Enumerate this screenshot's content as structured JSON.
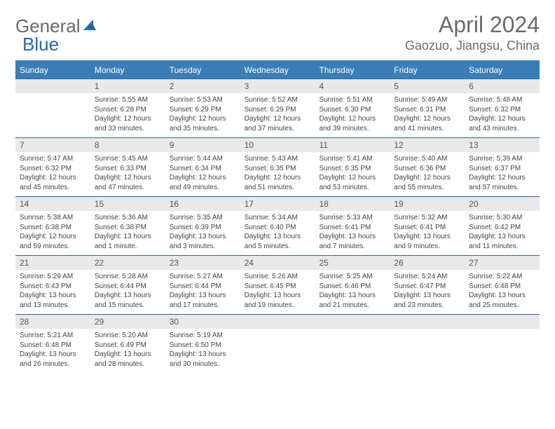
{
  "logo": {
    "text1": "General",
    "text2": "Blue"
  },
  "title": "April 2024",
  "location": "Gaozuo, Jiangsu, China",
  "colors": {
    "header_bg": "#3b7db9",
    "header_text": "#ffffff",
    "divider": "#2169b0",
    "daynum_bg": "#e9e9e9",
    "text": "#444444",
    "title_text": "#6b6b6b"
  },
  "day_labels": [
    "Sunday",
    "Monday",
    "Tuesday",
    "Wednesday",
    "Thursday",
    "Friday",
    "Saturday"
  ],
  "weeks": [
    [
      {
        "n": "",
        "sunrise": "",
        "sunset": "",
        "daylight": ""
      },
      {
        "n": "1",
        "sunrise": "Sunrise: 5:55 AM",
        "sunset": "Sunset: 6:28 PM",
        "daylight": "Daylight: 12 hours and 33 minutes."
      },
      {
        "n": "2",
        "sunrise": "Sunrise: 5:53 AM",
        "sunset": "Sunset: 6:29 PM",
        "daylight": "Daylight: 12 hours and 35 minutes."
      },
      {
        "n": "3",
        "sunrise": "Sunrise: 5:52 AM",
        "sunset": "Sunset: 6:29 PM",
        "daylight": "Daylight: 12 hours and 37 minutes."
      },
      {
        "n": "4",
        "sunrise": "Sunrise: 5:51 AM",
        "sunset": "Sunset: 6:30 PM",
        "daylight": "Daylight: 12 hours and 39 minutes."
      },
      {
        "n": "5",
        "sunrise": "Sunrise: 5:49 AM",
        "sunset": "Sunset: 6:31 PM",
        "daylight": "Daylight: 12 hours and 41 minutes."
      },
      {
        "n": "6",
        "sunrise": "Sunrise: 5:48 AM",
        "sunset": "Sunset: 6:32 PM",
        "daylight": "Daylight: 12 hours and 43 minutes."
      }
    ],
    [
      {
        "n": "7",
        "sunrise": "Sunrise: 5:47 AM",
        "sunset": "Sunset: 6:32 PM",
        "daylight": "Daylight: 12 hours and 45 minutes."
      },
      {
        "n": "8",
        "sunrise": "Sunrise: 5:45 AM",
        "sunset": "Sunset: 6:33 PM",
        "daylight": "Daylight: 12 hours and 47 minutes."
      },
      {
        "n": "9",
        "sunrise": "Sunrise: 5:44 AM",
        "sunset": "Sunset: 6:34 PM",
        "daylight": "Daylight: 12 hours and 49 minutes."
      },
      {
        "n": "10",
        "sunrise": "Sunrise: 5:43 AM",
        "sunset": "Sunset: 6:35 PM",
        "daylight": "Daylight: 12 hours and 51 minutes."
      },
      {
        "n": "11",
        "sunrise": "Sunrise: 5:41 AM",
        "sunset": "Sunset: 6:35 PM",
        "daylight": "Daylight: 12 hours and 53 minutes."
      },
      {
        "n": "12",
        "sunrise": "Sunrise: 5:40 AM",
        "sunset": "Sunset: 6:36 PM",
        "daylight": "Daylight: 12 hours and 55 minutes."
      },
      {
        "n": "13",
        "sunrise": "Sunrise: 5:39 AM",
        "sunset": "Sunset: 6:37 PM",
        "daylight": "Daylight: 12 hours and 57 minutes."
      }
    ],
    [
      {
        "n": "14",
        "sunrise": "Sunrise: 5:38 AM",
        "sunset": "Sunset: 6:38 PM",
        "daylight": "Daylight: 12 hours and 59 minutes."
      },
      {
        "n": "15",
        "sunrise": "Sunrise: 5:36 AM",
        "sunset": "Sunset: 6:38 PM",
        "daylight": "Daylight: 13 hours and 1 minute."
      },
      {
        "n": "16",
        "sunrise": "Sunrise: 5:35 AM",
        "sunset": "Sunset: 6:39 PM",
        "daylight": "Daylight: 13 hours and 3 minutes."
      },
      {
        "n": "17",
        "sunrise": "Sunrise: 5:34 AM",
        "sunset": "Sunset: 6:40 PM",
        "daylight": "Daylight: 13 hours and 5 minutes."
      },
      {
        "n": "18",
        "sunrise": "Sunrise: 5:33 AM",
        "sunset": "Sunset: 6:41 PM",
        "daylight": "Daylight: 13 hours and 7 minutes."
      },
      {
        "n": "19",
        "sunrise": "Sunrise: 5:32 AM",
        "sunset": "Sunset: 6:41 PM",
        "daylight": "Daylight: 13 hours and 9 minutes."
      },
      {
        "n": "20",
        "sunrise": "Sunrise: 5:30 AM",
        "sunset": "Sunset: 6:42 PM",
        "daylight": "Daylight: 13 hours and 11 minutes."
      }
    ],
    [
      {
        "n": "21",
        "sunrise": "Sunrise: 5:29 AM",
        "sunset": "Sunset: 6:43 PM",
        "daylight": "Daylight: 13 hours and 13 minutes."
      },
      {
        "n": "22",
        "sunrise": "Sunrise: 5:28 AM",
        "sunset": "Sunset: 6:44 PM",
        "daylight": "Daylight: 13 hours and 15 minutes."
      },
      {
        "n": "23",
        "sunrise": "Sunrise: 5:27 AM",
        "sunset": "Sunset: 6:44 PM",
        "daylight": "Daylight: 13 hours and 17 minutes."
      },
      {
        "n": "24",
        "sunrise": "Sunrise: 5:26 AM",
        "sunset": "Sunset: 6:45 PM",
        "daylight": "Daylight: 13 hours and 19 minutes."
      },
      {
        "n": "25",
        "sunrise": "Sunrise: 5:25 AM",
        "sunset": "Sunset: 6:46 PM",
        "daylight": "Daylight: 13 hours and 21 minutes."
      },
      {
        "n": "26",
        "sunrise": "Sunrise: 5:24 AM",
        "sunset": "Sunset: 6:47 PM",
        "daylight": "Daylight: 13 hours and 23 minutes."
      },
      {
        "n": "27",
        "sunrise": "Sunrise: 5:22 AM",
        "sunset": "Sunset: 6:48 PM",
        "daylight": "Daylight: 13 hours and 25 minutes."
      }
    ],
    [
      {
        "n": "28",
        "sunrise": "Sunrise: 5:21 AM",
        "sunset": "Sunset: 6:48 PM",
        "daylight": "Daylight: 13 hours and 26 minutes."
      },
      {
        "n": "29",
        "sunrise": "Sunrise: 5:20 AM",
        "sunset": "Sunset: 6:49 PM",
        "daylight": "Daylight: 13 hours and 28 minutes."
      },
      {
        "n": "30",
        "sunrise": "Sunrise: 5:19 AM",
        "sunset": "Sunset: 6:50 PM",
        "daylight": "Daylight: 13 hours and 30 minutes."
      },
      {
        "n": "",
        "sunrise": "",
        "sunset": "",
        "daylight": ""
      },
      {
        "n": "",
        "sunrise": "",
        "sunset": "",
        "daylight": ""
      },
      {
        "n": "",
        "sunrise": "",
        "sunset": "",
        "daylight": ""
      },
      {
        "n": "",
        "sunrise": "",
        "sunset": "",
        "daylight": ""
      }
    ]
  ]
}
